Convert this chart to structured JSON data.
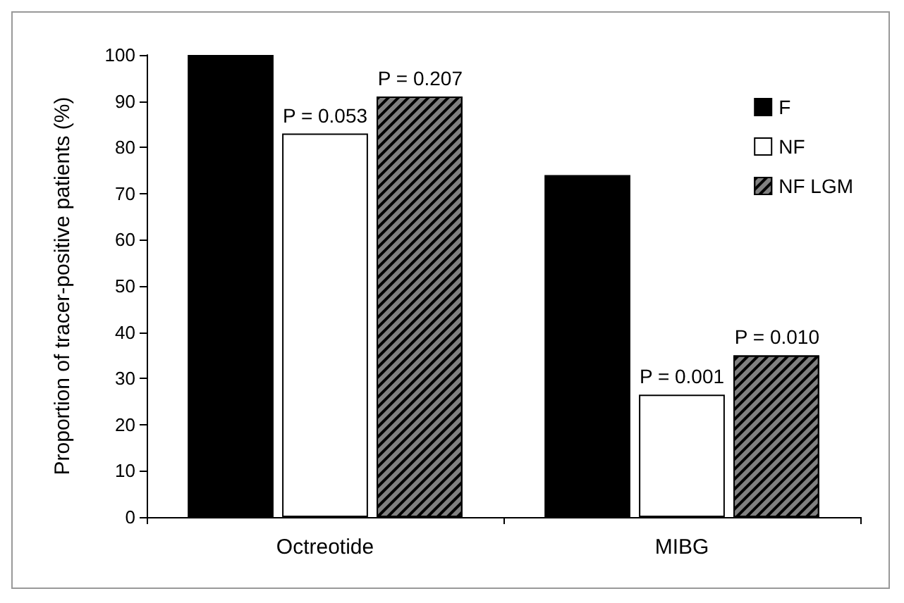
{
  "chart_data": {
    "type": "bar",
    "ylabel": "Proportion of tracer-positive patients (%)",
    "categories": [
      "Octreotide",
      "MIBG"
    ],
    "series": [
      {
        "name": "F",
        "color": "#000000",
        "values": [
          100,
          74
        ]
      },
      {
        "name": "NF",
        "color": "#ffffff",
        "values": [
          83,
          26.5
        ]
      },
      {
        "name": "NF LGM",
        "color": "#808080",
        "values": [
          91,
          35
        ]
      }
    ],
    "ylim": [
      0,
      100
    ],
    "yticks": [
      0,
      10,
      20,
      30,
      40,
      50,
      60,
      70,
      80,
      90,
      100
    ],
    "grid": false,
    "legend": "top right",
    "annotations": [
      {
        "text": "P = 0.053",
        "x": "Octreotide",
        "y": 83
      },
      "P = 0.207",
      {
        "text": "P = 0.001",
        "x": "MIBG",
        "y": 26.5
      },
      "P = 0.010"
    ]
  }
}
